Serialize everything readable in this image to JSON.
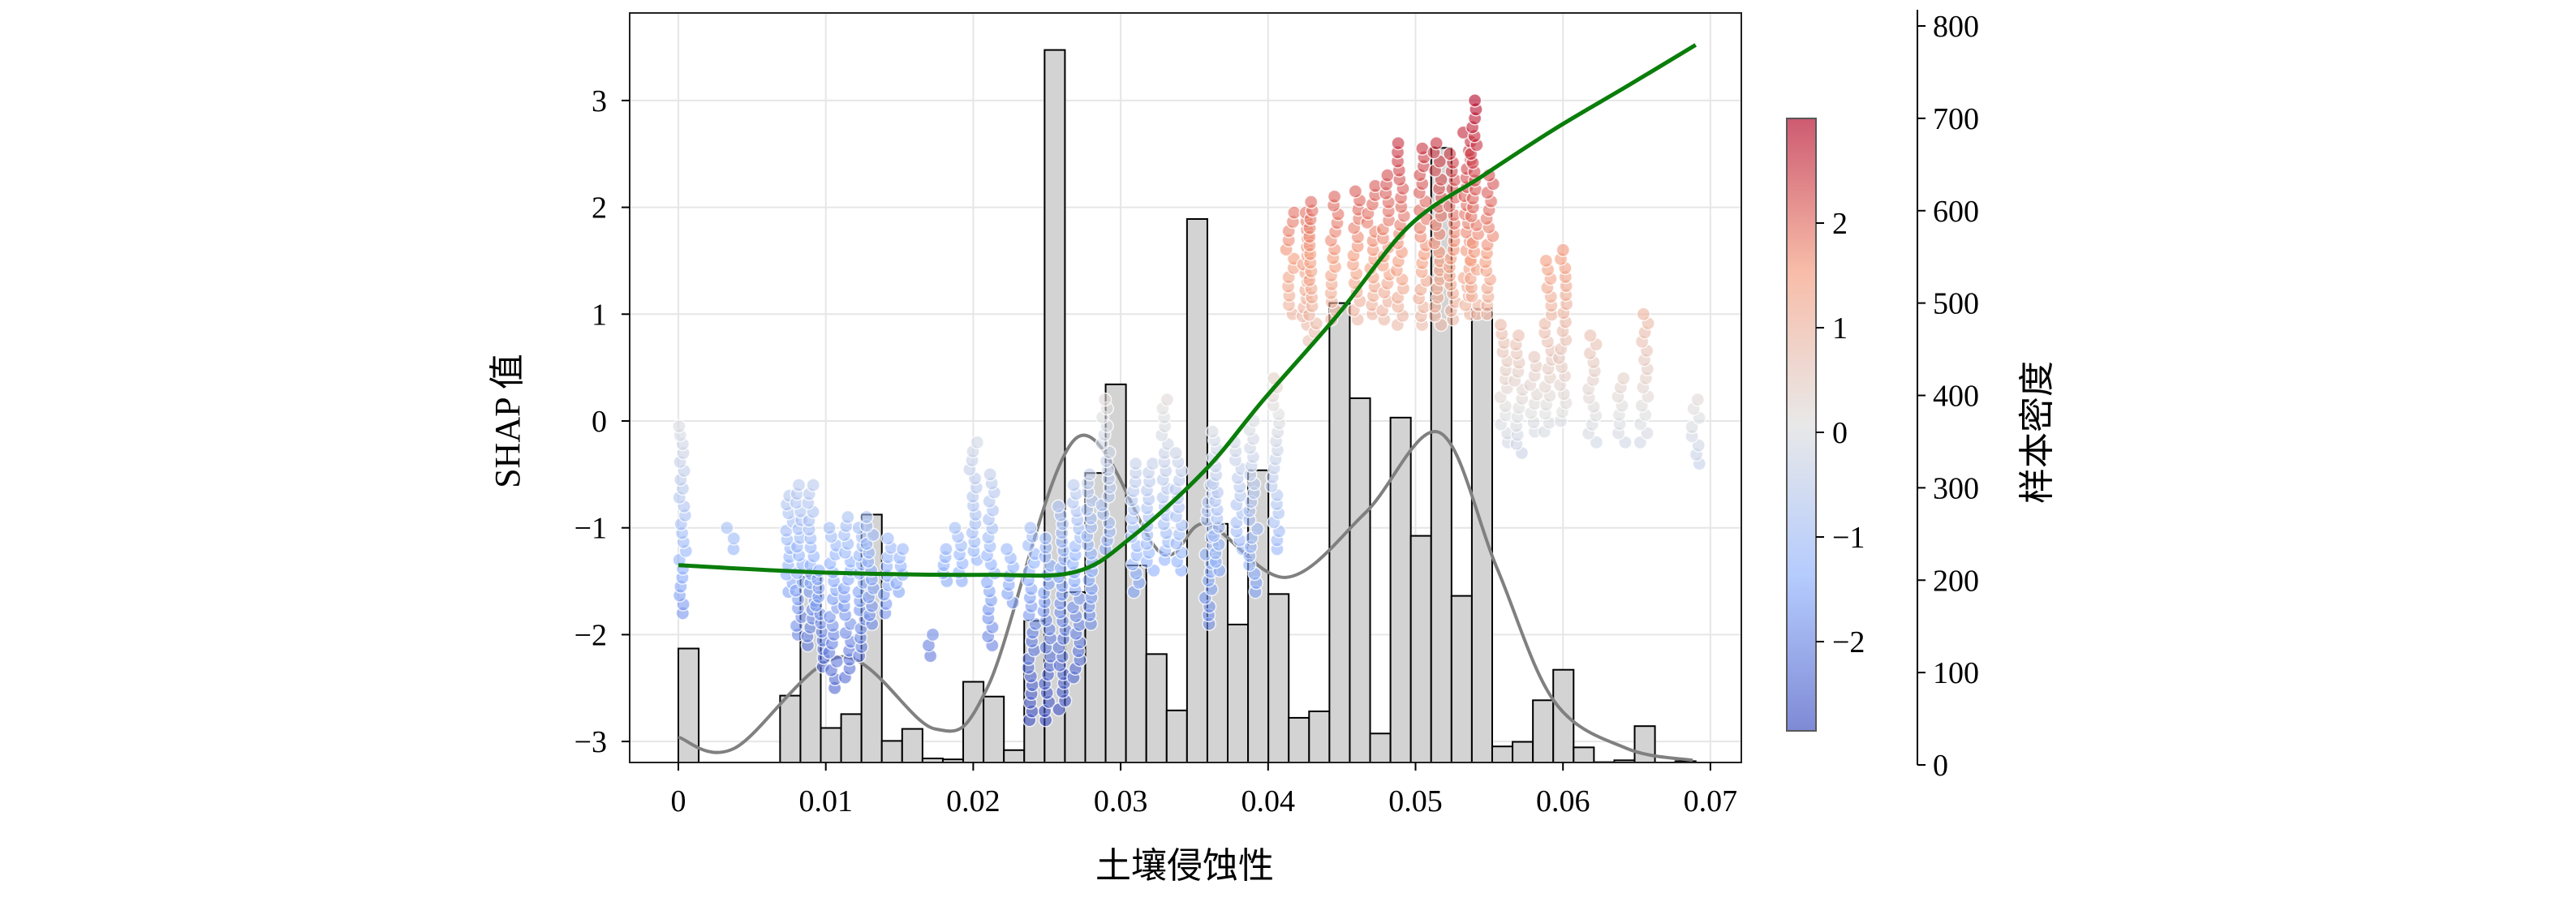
{
  "chart_data": {
    "type": "scatter",
    "title": "",
    "xlabel": "土壤侵蚀性",
    "ylabel": "SHAP 值",
    "y2label": "样本密度",
    "xlim": [
      -0.0045,
      0.0725
    ],
    "ylim": [
      -3.2,
      3.75
    ],
    "y2lim": [
      0,
      808
    ],
    "grid": true,
    "xticks": [
      0,
      0.01,
      0.02,
      0.03,
      0.04,
      0.05,
      0.06,
      0.07
    ],
    "xtick_labels": [
      "0",
      "0.01",
      "0.02",
      "0.03",
      "0.04",
      "0.05",
      "0.06",
      "0.07"
    ],
    "yticks": [
      -3,
      -2,
      -1,
      0,
      1,
      2,
      3
    ],
    "ytick_labels": [
      "−3",
      "−2",
      "−1",
      "0",
      "1",
      "2",
      "3"
    ],
    "y2ticks": [
      0,
      100,
      200,
      300,
      400,
      500,
      600,
      700,
      800
    ],
    "y2tick_labels": [
      "0",
      "100",
      "200",
      "300",
      "400",
      "500",
      "600",
      "700",
      "800"
    ],
    "colorbar": {
      "range": [
        -2.85,
        3.0
      ],
      "ticks": [
        -2,
        -1,
        0,
        1,
        2
      ],
      "tick_labels": [
        "−2",
        "−1",
        "0",
        "1",
        "2"
      ],
      "colormap": "coolwarm"
    },
    "histogram": {
      "bin_start": 0,
      "bin_width": 0.00138,
      "counts": [
        126,
        2,
        2,
        0,
        1,
        75,
        204,
        40,
        55,
        271,
        26,
        39,
        7,
        6,
        90,
        74,
        16,
        156,
        774,
        187,
        316,
        412,
        216,
        120,
        59,
        591,
        261,
        152,
        319,
        185,
        51,
        58,
        500,
        397,
        34,
        376,
        248,
        668,
        183,
        494,
        20,
        25,
        70,
        103,
        19,
        3,
        5,
        42,
        0,
        4
      ],
      "fill": "#d3d3d3",
      "edge": "#000000"
    },
    "kde_line": {
      "color": "#808080",
      "x": [
        0,
        0.0038,
        0.011,
        0.0174,
        0.021,
        0.027,
        0.0327,
        0.0358,
        0.0412,
        0.0466,
        0.0516,
        0.0555,
        0.0594,
        0.0643,
        0.0688
      ],
      "y": [
        30,
        18,
        117,
        39,
        85,
        354,
        230,
        261,
        203,
        273,
        360,
        214,
        69,
        18,
        5
      ]
    },
    "trend_line": {
      "color": "#0a7d0a",
      "x": [
        0,
        0.0102,
        0.021,
        0.027,
        0.0309,
        0.0358,
        0.0397,
        0.0447,
        0.0496,
        0.0545,
        0.0594,
        0.0643,
        0.069
      ],
      "y": [
        -1.35,
        -1.42,
        -1.44,
        -1.41,
        -1.07,
        -0.45,
        0.2,
        0.99,
        1.83,
        2.29,
        2.73,
        3.13,
        3.52
      ]
    },
    "scatter_columns": [
      [
        0.0003,
        -1.8,
        -0.05
      ],
      [
        0.0035,
        -1.2,
        -1.0
      ],
      [
        0.0075,
        -1.6,
        -0.7
      ],
      [
        0.0082,
        -2.0,
        -0.6
      ],
      [
        0.009,
        -2.1,
        -0.6
      ],
      [
        0.0096,
        -2.3,
        -1.4
      ],
      [
        0.0105,
        -2.5,
        -1.0
      ],
      [
        0.0115,
        -2.4,
        -0.9
      ],
      [
        0.0125,
        -2.2,
        -1.0
      ],
      [
        0.013,
        -1.9,
        -0.9
      ],
      [
        0.0142,
        -1.8,
        -1.1
      ],
      [
        0.015,
        -1.6,
        -1.2
      ],
      [
        0.017,
        -2.2,
        -2.0
      ],
      [
        0.018,
        -1.5,
        -1.2
      ],
      [
        0.019,
        -1.5,
        -1.0
      ],
      [
        0.02,
        -1.3,
        -0.2
      ],
      [
        0.0212,
        -2.1,
        -0.5
      ],
      [
        0.0225,
        -1.7,
        -1.2
      ],
      [
        0.024,
        -2.8,
        -1.0
      ],
      [
        0.025,
        -2.8,
        -1.1
      ],
      [
        0.026,
        -2.7,
        -0.8
      ],
      [
        0.027,
        -2.4,
        -0.6
      ],
      [
        0.028,
        -1.9,
        -0.5
      ],
      [
        0.029,
        -1.2,
        0.2
      ],
      [
        0.031,
        -1.6,
        -0.4
      ],
      [
        0.032,
        -1.4,
        -0.4
      ],
      [
        0.033,
        -1.3,
        0.2
      ],
      [
        0.034,
        -1.4,
        -0.3
      ],
      [
        0.036,
        -1.9,
        -0.6
      ],
      [
        0.0365,
        -1.4,
        -0.1
      ],
      [
        0.038,
        -1.2,
        -0.2
      ],
      [
        0.039,
        -1.6,
        0.0
      ],
      [
        0.0405,
        -1.2,
        0.4
      ],
      [
        0.0415,
        1.0,
        1.95
      ],
      [
        0.0425,
        0.9,
        1.95
      ],
      [
        0.043,
        0.75,
        2.05
      ],
      [
        0.0445,
        0.95,
        2.1
      ],
      [
        0.046,
        0.95,
        2.15
      ],
      [
        0.047,
        1.0,
        2.2
      ],
      [
        0.048,
        0.95,
        2.3
      ],
      [
        0.049,
        0.9,
        2.6
      ],
      [
        0.0505,
        0.9,
        2.55
      ],
      [
        0.0515,
        0.9,
        2.6
      ],
      [
        0.0525,
        0.95,
        2.5
      ],
      [
        0.0535,
        1.0,
        2.7
      ],
      [
        0.054,
        1.0,
        3.0
      ],
      [
        0.055,
        1.0,
        2.3
      ],
      [
        0.056,
        -0.2,
        0.9
      ],
      [
        0.057,
        -0.3,
        0.8
      ],
      [
        0.058,
        -0.1,
        0.6
      ],
      [
        0.059,
        -0.1,
        1.5
      ],
      [
        0.06,
        0.0,
        1.6
      ],
      [
        0.062,
        -0.2,
        0.8
      ],
      [
        0.064,
        -0.2,
        0.4
      ],
      [
        0.0655,
        -0.2,
        1.0
      ],
      [
        0.069,
        -0.4,
        0.2
      ]
    ]
  }
}
